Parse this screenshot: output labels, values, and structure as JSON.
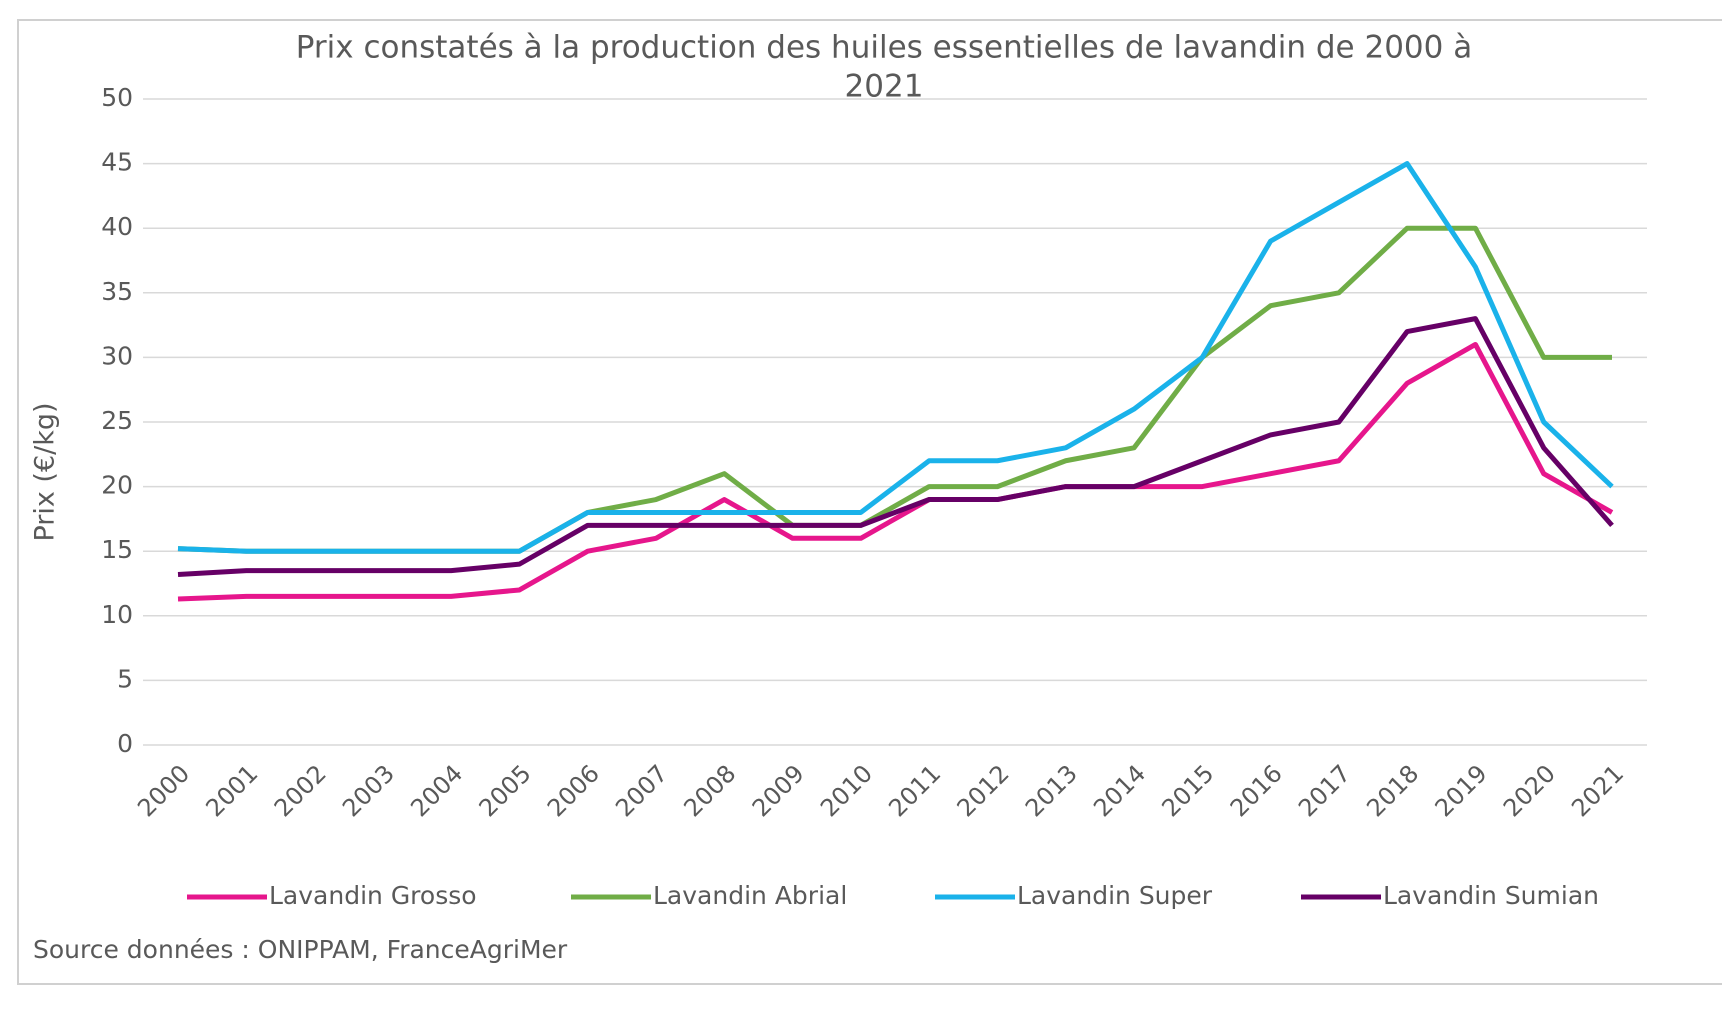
{
  "chart_data": {
    "type": "line",
    "title": [
      "Prix constatés à la production des huiles essentielles de lavandin de 2000 à",
      "2021"
    ],
    "y_label": "Prix (€/kg)",
    "source": "Source données : ONIPPAM, FranceAgriMer",
    "categories": [
      "2000",
      "2001",
      "2002",
      "2003",
      "2004",
      "2005",
      "2006",
      "2007",
      "2008",
      "2009",
      "2010",
      "2011",
      "2012",
      "2013",
      "2014",
      "2015",
      "2016",
      "2017",
      "2018",
      "2019",
      "2020",
      "2021"
    ],
    "series": [
      {
        "name": "Lavandin Grosso",
        "color": "#e6168c",
        "values": [
          11.3,
          11.5,
          11.5,
          11.5,
          11.5,
          12,
          15,
          16,
          19,
          16,
          16,
          19,
          19,
          20,
          20,
          20,
          21,
          22,
          28,
          31,
          21,
          18
        ]
      },
      {
        "name": "Lavandin Abrial",
        "color": "#70ad47",
        "values": [
          15.2,
          15,
          15,
          15,
          15,
          15,
          18,
          19,
          21,
          17,
          17,
          20,
          20,
          22,
          23,
          30,
          34,
          35,
          40,
          40,
          30,
          30
        ]
      },
      {
        "name": "Lavandin Super",
        "color": "#1ab2ea",
        "values": [
          15.2,
          15,
          15,
          15,
          15,
          15,
          18,
          18,
          18,
          18,
          18,
          22,
          22,
          23,
          26,
          30,
          39,
          42,
          45,
          37,
          25,
          20
        ]
      },
      {
        "name": "Lavandin Sumian",
        "color": "#660066",
        "values": [
          13.2,
          13.5,
          13.5,
          13.5,
          13.5,
          14,
          17,
          17,
          17,
          17,
          17,
          19,
          19,
          20,
          20,
          22,
          24,
          25,
          32,
          33,
          23,
          17
        ]
      }
    ],
    "ylim": [
      0,
      50
    ],
    "yticks": [
      0,
      5,
      10,
      15,
      20,
      25,
      30,
      35,
      40,
      45,
      50
    ],
    "grid": true,
    "legend": "bottom"
  }
}
